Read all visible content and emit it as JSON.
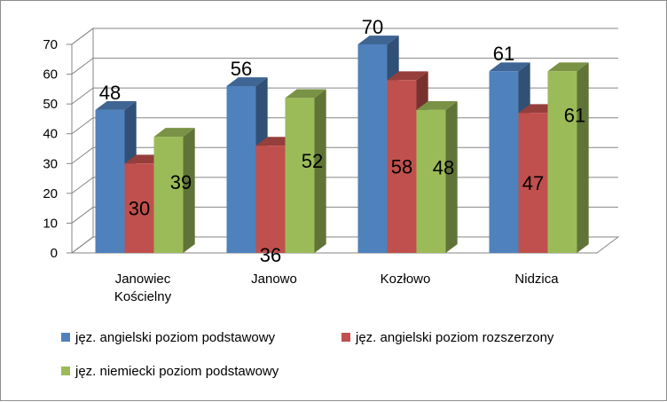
{
  "chart_data": {
    "type": "bar",
    "title": "",
    "xlabel": "",
    "ylabel": "",
    "ylim": [
      0,
      70
    ],
    "yticks": [
      0,
      10,
      20,
      30,
      40,
      50,
      60,
      70
    ],
    "grid": true,
    "legend_position": "bottom",
    "categories": [
      [
        "Janowiec",
        "Kościelny"
      ],
      [
        "Janowo"
      ],
      [
        "Kozłowo"
      ],
      [
        "Nidzica"
      ]
    ],
    "series": [
      {
        "name": "jęz. angielski poziom podstawowy",
        "values": [
          48,
          56,
          70,
          61
        ],
        "color": "#4f81bd"
      },
      {
        "name": "jęz. angielski poziom rozszerzony",
        "values": [
          30,
          36,
          58,
          47
        ],
        "color": "#c0504d"
      },
      {
        "name": "jęz. niemiecki poziom podstawowy",
        "values": [
          39,
          52,
          48,
          61
        ],
        "color": "#9bbb59"
      }
    ]
  }
}
